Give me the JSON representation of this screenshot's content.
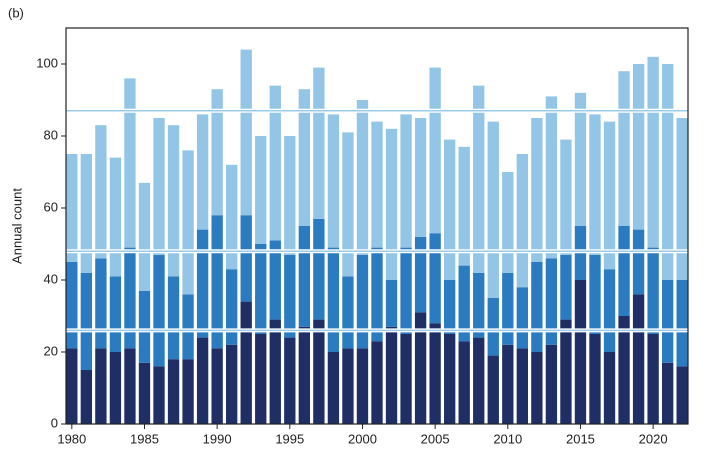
{
  "chart_data": {
    "type": "stacked_bar",
    "panel_label": "(b)",
    "y_label": "Annual count",
    "x": [
      1980,
      1981,
      1982,
      1983,
      1984,
      1985,
      1986,
      1987,
      1988,
      1989,
      1990,
      1991,
      1992,
      1993,
      1994,
      1995,
      1996,
      1997,
      1998,
      1999,
      2000,
      2001,
      2002,
      2003,
      2004,
      2005,
      2006,
      2007,
      2008,
      2009,
      2010,
      2011,
      2012,
      2013,
      2014,
      2015,
      2016,
      2017,
      2018,
      2019,
      2020,
      2021,
      2022
    ],
    "series": [
      {
        "color": "#1f2f66",
        "values": [
          21,
          15,
          21,
          20,
          21,
          17,
          16,
          18,
          18,
          24,
          21,
          22,
          34,
          25,
          29,
          24,
          27,
          29,
          20,
          21,
          21,
          23,
          27,
          25,
          31,
          28,
          25,
          23,
          24,
          19,
          22,
          21,
          20,
          22,
          29,
          40,
          25,
          20,
          30,
          36,
          25,
          17,
          16
        ]
      },
      {
        "color": "#2b7bc0",
        "values": [
          24,
          27,
          25,
          21,
          28,
          20,
          31,
          23,
          18,
          30,
          37,
          21,
          24,
          25,
          22,
          23,
          28,
          28,
          29,
          20,
          26,
          26,
          13,
          24,
          21,
          25,
          15,
          21,
          18,
          16,
          20,
          17,
          25,
          24,
          18,
          15,
          22,
          23,
          25,
          18,
          24,
          23,
          24
        ]
      },
      {
        "color": "#93c5e6",
        "values": [
          30,
          33,
          37,
          33,
          47,
          30,
          38,
          42,
          40,
          32,
          35,
          29,
          46,
          30,
          43,
          33,
          38,
          42,
          37,
          40,
          43,
          35,
          42,
          37,
          33,
          46,
          39,
          33,
          52,
          49,
          28,
          37,
          40,
          45,
          32,
          37,
          39,
          41,
          43,
          46,
          53,
          60,
          45
        ]
      }
    ],
    "reference_lines": [
      26,
      48,
      87
    ],
    "reference_color": "#9ccbe8",
    "xlim": [
      1979.6,
      2022.4
    ],
    "xticks": [
      1980,
      1985,
      1990,
      1995,
      2000,
      2005,
      2010,
      2015,
      2020
    ],
    "ylim": [
      0,
      110
    ],
    "yticks": [
      0,
      20,
      40,
      60,
      80,
      100
    ]
  }
}
